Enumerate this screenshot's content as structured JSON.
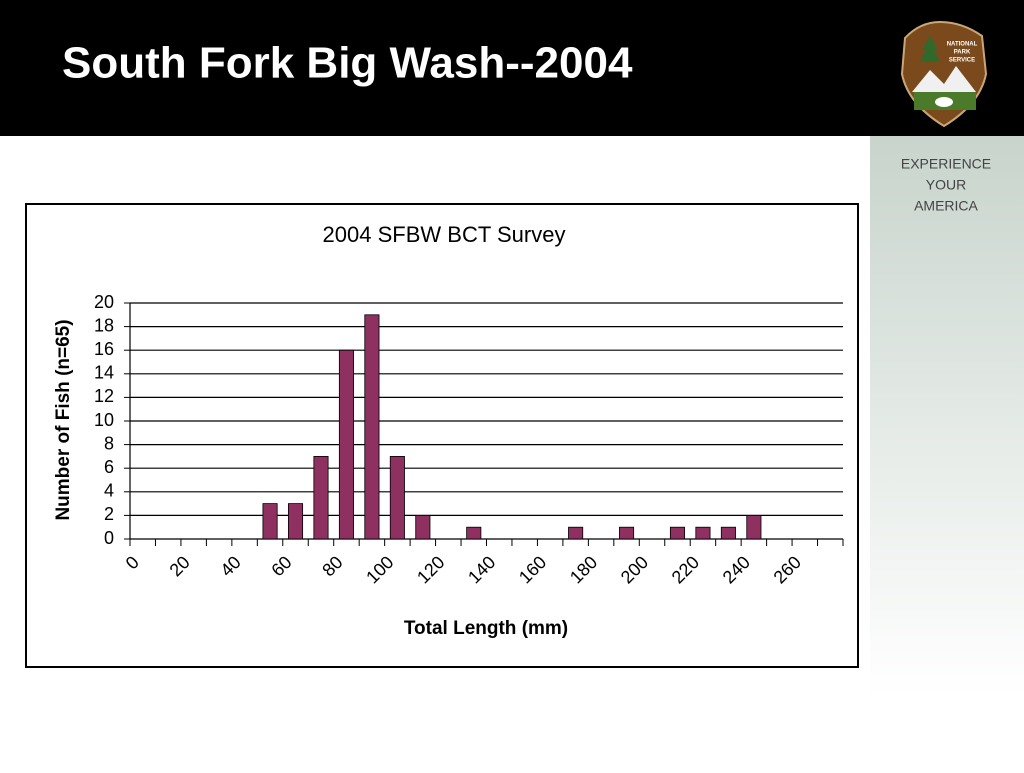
{
  "slide": {
    "title": "South Fork Big Wash--2004",
    "logo_text": [
      "NATIONAL",
      "PARK",
      "SERVICE"
    ],
    "tagline": [
      "EXPERIENCE",
      "YOUR",
      "AMERICA"
    ]
  },
  "chart_data": {
    "type": "bar",
    "title": "2004 SFBW BCT Survey",
    "x_label": "Total Length (mm)",
    "y_label": "Number of Fish (n=65)",
    "categories": [
      "0",
      null,
      "20",
      null,
      "40",
      null,
      "60",
      null,
      "80",
      null,
      "100",
      null,
      "120",
      null,
      "140",
      null,
      "160",
      null,
      "180",
      null,
      "200",
      null,
      "220",
      null,
      "240",
      null,
      "260",
      null
    ],
    "values": [
      0,
      0,
      0,
      0,
      0,
      3,
      3,
      7,
      16,
      19,
      7,
      2,
      0,
      1,
      0,
      0,
      0,
      1,
      0,
      1,
      0,
      1,
      1,
      1,
      2,
      0,
      0,
      0
    ],
    "color": "#8e3060",
    "ylim": [
      0,
      20
    ],
    "yticks": [
      0,
      2,
      4,
      6,
      8,
      10,
      12,
      14,
      16,
      18,
      20
    ],
    "grid": true
  }
}
